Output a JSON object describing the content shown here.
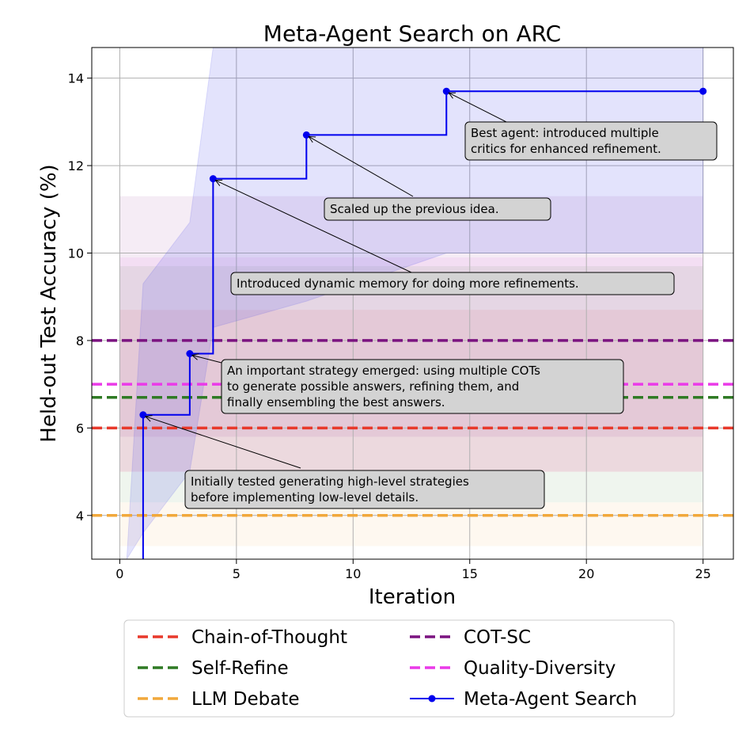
{
  "chart_data": {
    "type": "line",
    "title": "Meta-Agent Search on ARC",
    "xlabel": "Iteration",
    "ylabel": "Held-out Test Accuracy (%)",
    "xlim": [
      -1.2,
      26.3
    ],
    "ylim": [
      3.0,
      14.7
    ],
    "xticks": [
      0,
      5,
      10,
      15,
      20,
      25
    ],
    "yticks": [
      4,
      6,
      8,
      10,
      12,
      14
    ],
    "grid": true,
    "legend_position": "bottom",
    "series": [
      {
        "name": "Meta-Agent Search",
        "style": "step",
        "color": "#0000ee",
        "x": [
          1,
          3,
          4,
          8,
          14,
          25
        ],
        "y": [
          6.3,
          7.7,
          11.7,
          12.7,
          13.7,
          13.7
        ]
      }
    ],
    "confidence_band": {
      "color": "#4444ee",
      "x": [
        0.3,
        1,
        3,
        4,
        8,
        14,
        25
      ],
      "lower": [
        3.0,
        3.6,
        5.0,
        8.3,
        8.9,
        10.0,
        10.0
      ],
      "upper": [
        3.0,
        9.3,
        10.7,
        14.7,
        14.7,
        14.7,
        14.7
      ]
    },
    "baselines": [
      {
        "name": "Chain-of-Thought",
        "value": 6.0,
        "color": "#e8392b",
        "band": [
          5.0,
          8.7
        ]
      },
      {
        "name": "COT-SC",
        "value": 8.0,
        "color": "#7b1380",
        "band": [
          5.8,
          11.3
        ]
      },
      {
        "name": "Self-Refine",
        "value": 6.7,
        "color": "#2f7a24",
        "band": [
          4.3,
          9.7
        ]
      },
      {
        "name": "Quality-Diversity",
        "value": 7.0,
        "color": "#ea3ae8",
        "band": [
          5.0,
          9.9
        ]
      },
      {
        "name": "LLM Debate",
        "value": 4.0,
        "color": "#f1a83b",
        "band": [
          3.3,
          4.3
        ]
      }
    ],
    "annotations": [
      {
        "lines": [
          "Initially tested generating high-level strategies",
          "before implementing low-level details."
        ],
        "point": [
          1,
          6.3
        ]
      },
      {
        "lines": [
          "An important strategy emerged: using multiple COTs",
          "to generate possible answers, refining them, and",
          "finally ensembling the best answers."
        ],
        "point": [
          3,
          7.7
        ]
      },
      {
        "lines": [
          "Introduced dynamic memory for doing more refinements."
        ],
        "point": [
          4,
          11.7
        ]
      },
      {
        "lines": [
          "Scaled up the previous idea."
        ],
        "point": [
          8,
          12.7
        ]
      },
      {
        "lines": [
          "Best agent: introduced multiple",
          "critics for enhanced refinement."
        ],
        "point": [
          14,
          13.7
        ]
      }
    ],
    "legend": [
      {
        "label": "Chain-of-Thought",
        "color": "#e8392b",
        "style": "dashed"
      },
      {
        "label": "COT-SC",
        "color": "#7b1380",
        "style": "dashed"
      },
      {
        "label": "Self-Refine",
        "color": "#2f7a24",
        "style": "dashed"
      },
      {
        "label": "Quality-Diversity",
        "color": "#ea3ae8",
        "style": "dashed"
      },
      {
        "label": "LLM Debate",
        "color": "#f1a83b",
        "style": "dashed"
      },
      {
        "label": "Meta-Agent Search",
        "color": "#0000ee",
        "style": "line-marker"
      }
    ]
  }
}
